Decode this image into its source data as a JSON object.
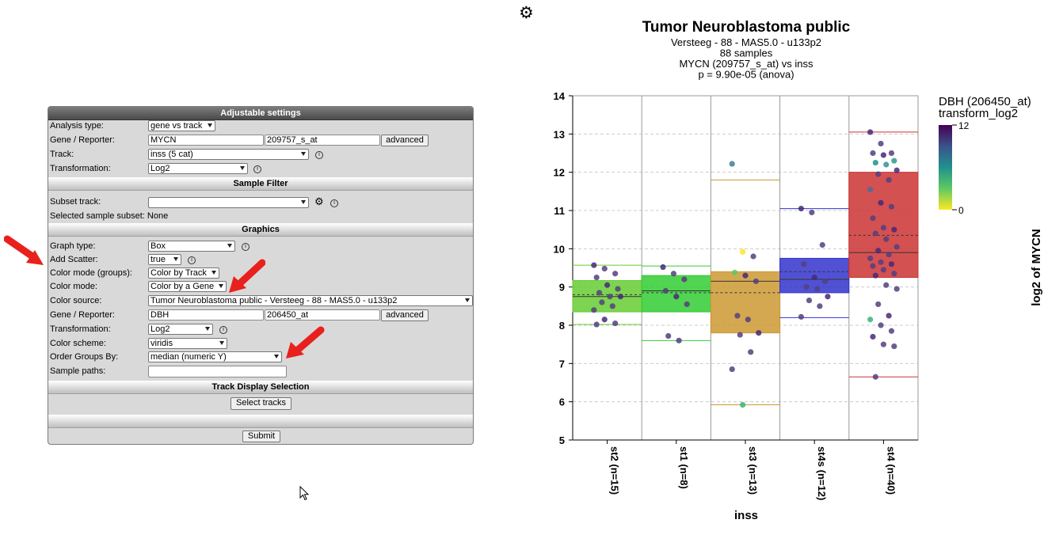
{
  "panel": {
    "title": "Adjustable settings",
    "analysis_type": {
      "label": "Analysis type:",
      "value": "gene vs track"
    },
    "gene_reporter": {
      "label": "Gene / Reporter:",
      "gene": "MYCN",
      "reporter": "209757_s_at",
      "advanced": "advanced"
    },
    "track": {
      "label": "Track:",
      "value": "inss (5 cat)"
    },
    "transformation": {
      "label": "Transformation:",
      "value": "Log2"
    },
    "sample_filter": {
      "title": "Sample Filter",
      "subset_track_label": "Subset track:",
      "subset_track_value": "",
      "selected_subset": "Selected sample subset: None"
    },
    "graphics": {
      "title": "Graphics",
      "graph_type": {
        "label": "Graph type:",
        "value": "Box"
      },
      "add_scatter": {
        "label": "Add Scatter:",
        "value": "true"
      },
      "color_mode_groups": {
        "label": "Color mode (groups):",
        "value": "Color by Track"
      },
      "color_mode": {
        "label": "Color mode:",
        "value": "Color by a Gene"
      },
      "color_source": {
        "label": "Color source:",
        "value": "Tumor Neuroblastoma public - Versteeg - 88 - MAS5.0 - u133p2"
      },
      "gene_reporter": {
        "label": "Gene / Reporter:",
        "gene": "DBH",
        "reporter": "206450_at",
        "advanced": "advanced"
      },
      "transformation": {
        "label": "Transformation:",
        "value": "Log2"
      },
      "color_scheme": {
        "label": "Color scheme:",
        "value": "viridis"
      },
      "order_groups": {
        "label": "Order Groups By:",
        "value": "median (numeric Y)"
      },
      "sample_paths": {
        "label": "Sample paths:",
        "value": ""
      }
    },
    "track_display": {
      "title": "Track Display Selection",
      "select_tracks": "Select tracks"
    },
    "submit": "Submit",
    "info_glyph": "i",
    "gear_glyph": "⚙"
  },
  "toolbar": {
    "settings_icon": "⚙"
  },
  "chart_data": {
    "type": "box",
    "title": "Tumor Neuroblastoma public",
    "subtitle_lines": [
      "Versteeg - 88 - MAS5.0 - u133p2",
      "88 samples",
      "MYCN (209757_s_at) vs inss",
      "p = 9.90e-05 (anova)"
    ],
    "xlabel": "inss",
    "ylabel": "log2 of MYCN",
    "ylim": [
      5,
      14
    ],
    "yticks": [
      5,
      6,
      7,
      8,
      9,
      10,
      11,
      12,
      13,
      14
    ],
    "grid": true,
    "categories": [
      "st2 (n=15)",
      "st1 (n=8)",
      "st3 (n=13)",
      "st4s (n=12)",
      "st4 (n=40)"
    ],
    "groups": [
      {
        "name": "st2 (n=15)",
        "color": "#66cc33",
        "whisker_low": 8.02,
        "q1": 8.35,
        "median": 8.75,
        "mean": 8.8,
        "q3": 9.17,
        "whisker_high": 9.57,
        "points": [
          9.57,
          9.48,
          9.35,
          9.25,
          9.05,
          8.95,
          8.85,
          8.75,
          8.75,
          8.6,
          8.5,
          8.4,
          8.15,
          8.05,
          8.02
        ]
      },
      {
        "name": "st1 (n=8)",
        "color": "#33cc33",
        "whisker_low": 7.6,
        "q1": 8.35,
        "median": 8.9,
        "mean": 8.85,
        "q3": 9.3,
        "whisker_high": 9.55,
        "points": [
          9.52,
          9.35,
          9.2,
          8.9,
          8.75,
          8.55,
          7.72,
          7.6
        ]
      },
      {
        "name": "st3 (n=13)",
        "color": "#cc9933",
        "whisker_low": 5.92,
        "q1": 7.8,
        "median": 9.15,
        "mean": 8.85,
        "q3": 9.4,
        "whisker_high": 11.8,
        "points": [
          12.22,
          9.92,
          9.8,
          9.38,
          9.3,
          9.15,
          8.25,
          8.15,
          7.8,
          7.75,
          7.3,
          6.85,
          5.92
        ]
      },
      {
        "name": "st4s (n=12)",
        "color": "#3333cc",
        "whisker_low": 8.2,
        "q1": 8.85,
        "median": 9.2,
        "mean": 9.4,
        "q3": 9.75,
        "whisker_high": 11.05,
        "points": [
          11.05,
          10.95,
          10.1,
          9.6,
          9.25,
          9.15,
          9.0,
          8.95,
          8.75,
          8.65,
          8.5,
          8.22
        ]
      },
      {
        "name": "st4 (n=40)",
        "color": "#cc3333",
        "whisker_low": 6.65,
        "q1": 9.25,
        "median": 9.9,
        "mean": 10.35,
        "q3": 12.0,
        "whisker_high": 13.05,
        "points": [
          13.05,
          12.75,
          12.5,
          12.5,
          12.45,
          12.3,
          12.25,
          12.2,
          12.05,
          11.95,
          11.8,
          11.55,
          11.2,
          11.1,
          10.8,
          10.55,
          10.5,
          10.4,
          10.25,
          10.05,
          9.95,
          9.85,
          9.75,
          9.65,
          9.6,
          9.55,
          9.45,
          9.35,
          9.3,
          9.05,
          8.95,
          8.55,
          8.25,
          8.15,
          8.0,
          7.85,
          7.7,
          7.5,
          7.45,
          6.65
        ]
      }
    ],
    "colorbar": {
      "title_lines": [
        "DBH (206450_at)",
        "transform_log2"
      ],
      "min": 0,
      "max": 12,
      "scheme": "viridis"
    }
  }
}
